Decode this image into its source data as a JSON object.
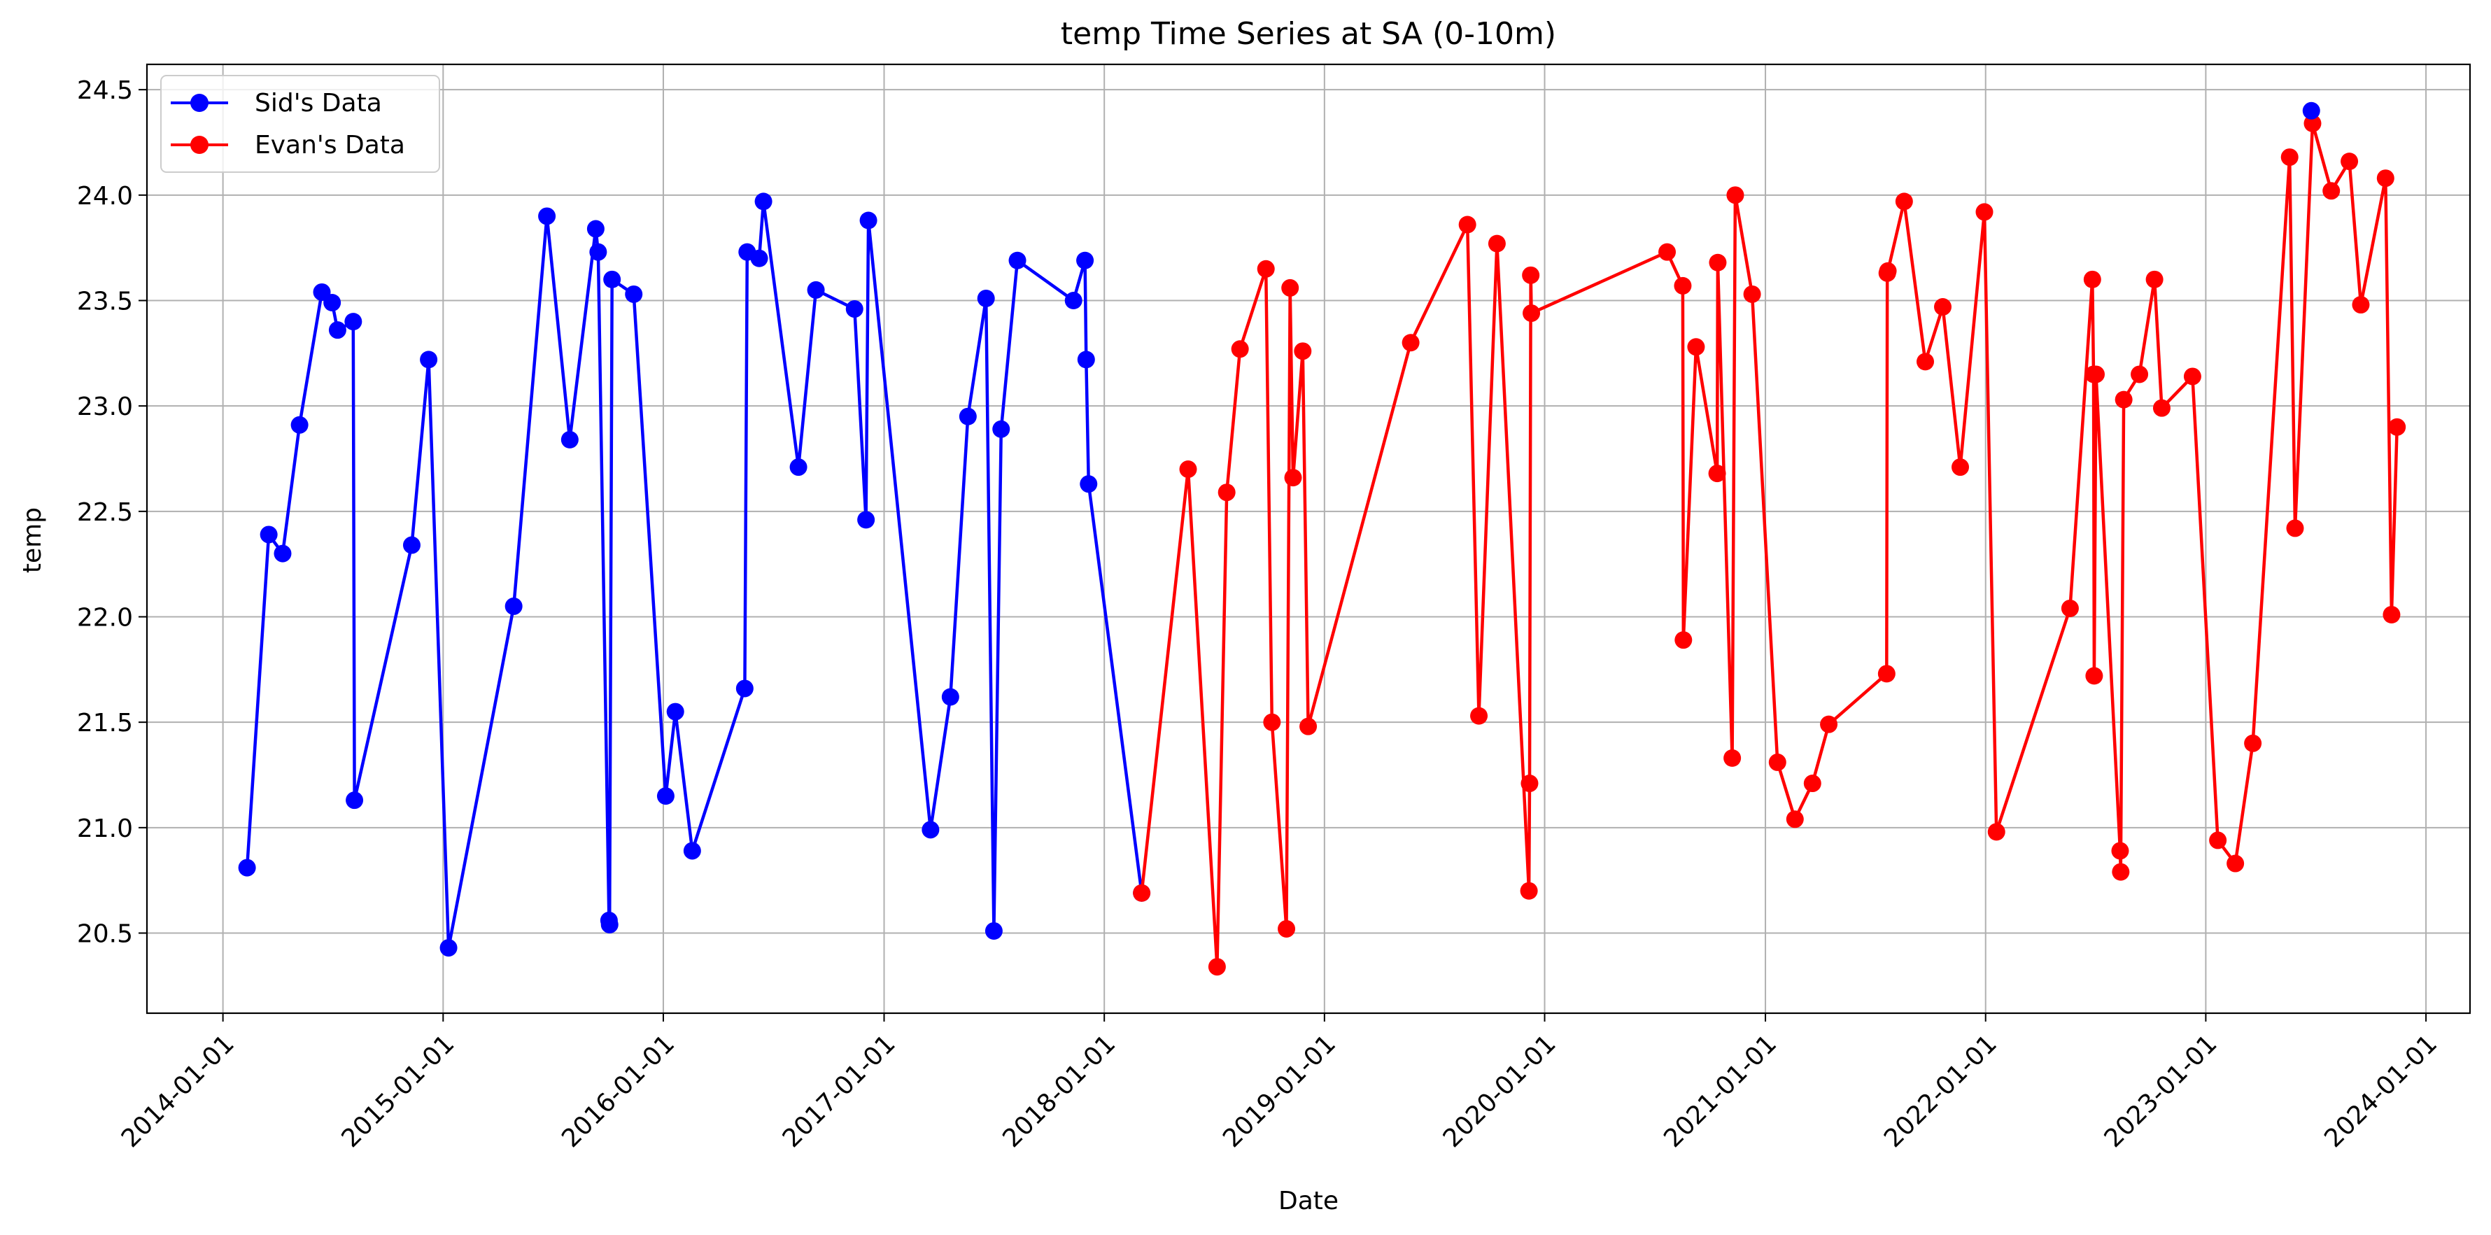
{
  "chart_data": {
    "type": "line",
    "title": "temp Time Series at SA (0-10m)",
    "xlabel": "Date",
    "ylabel": "temp",
    "ylim": [
      20.12,
      24.62
    ],
    "xlim": [
      "2013-08-28",
      "2024-03-14"
    ],
    "grid": true,
    "legend_position": "top-left",
    "x_ticks": [
      "2014-01-01",
      "2015-01-01",
      "2016-01-01",
      "2017-01-01",
      "2018-01-01",
      "2019-01-01",
      "2020-01-01",
      "2021-01-01",
      "2022-01-01",
      "2023-01-01",
      "2024-01-01"
    ],
    "y_ticks": [
      20.5,
      21.0,
      21.5,
      22.0,
      22.5,
      23.0,
      23.5,
      24.0,
      24.5
    ],
    "y_tick_labels": [
      "20.5",
      "21.0",
      "21.5",
      "22.0",
      "22.5",
      "23.0",
      "23.5",
      "24.0",
      "24.5"
    ],
    "series": [
      {
        "name": "Sid's Data",
        "color": "#0000ff",
        "points": [
          [
            "2014-02-10",
            20.81
          ],
          [
            "2014-03-18",
            22.39
          ],
          [
            "2014-04-10",
            22.3
          ],
          [
            "2014-05-08",
            22.91
          ],
          [
            "2014-06-14",
            23.54
          ],
          [
            "2014-07-01",
            23.49
          ],
          [
            "2014-07-10",
            23.36
          ],
          [
            "2014-08-05",
            23.4
          ],
          [
            "2014-08-07",
            21.13
          ],
          [
            "2014-11-10",
            22.34
          ],
          [
            "2014-12-08",
            23.22
          ],
          [
            "2015-01-10",
            20.43
          ],
          [
            "2015-04-28",
            22.05
          ],
          [
            "2015-06-22",
            23.9
          ],
          [
            "2015-07-30",
            22.84
          ],
          [
            "2015-09-11",
            23.84
          ],
          [
            "2015-09-15",
            23.73
          ],
          [
            "2015-10-03",
            20.56
          ],
          [
            "2015-10-04",
            20.54
          ],
          [
            "2015-10-08",
            23.6
          ],
          [
            "2015-11-13",
            23.53
          ],
          [
            "2016-01-05",
            21.15
          ],
          [
            "2016-01-21",
            21.55
          ],
          [
            "2016-02-18",
            20.89
          ],
          [
            "2016-05-15",
            21.66
          ],
          [
            "2016-05-19",
            23.73
          ],
          [
            "2016-06-08",
            23.7
          ],
          [
            "2016-06-15",
            23.97
          ],
          [
            "2016-08-12",
            22.71
          ],
          [
            "2016-09-10",
            23.55
          ],
          [
            "2016-11-13",
            23.46
          ],
          [
            "2016-12-02",
            22.46
          ],
          [
            "2016-12-06",
            23.88
          ],
          [
            "2017-03-19",
            20.99
          ],
          [
            "2017-04-21",
            21.62
          ],
          [
            "2017-05-20",
            22.95
          ],
          [
            "2017-06-19",
            23.51
          ],
          [
            "2017-07-02",
            20.51
          ],
          [
            "2017-07-14",
            22.89
          ],
          [
            "2017-08-10",
            23.69
          ],
          [
            "2017-11-11",
            23.5
          ],
          [
            "2017-11-30",
            23.69
          ],
          [
            "2017-12-02",
            23.22
          ],
          [
            "2017-12-06",
            22.63
          ],
          [
            "2018-03-04",
            20.69
          ]
        ]
      },
      {
        "name": "Evan's Data",
        "color": "#ff0000",
        "points": [
          [
            "2018-03-04",
            20.69
          ],
          [
            "2018-05-20",
            22.7
          ],
          [
            "2018-07-07",
            20.34
          ],
          [
            "2018-07-23",
            22.59
          ],
          [
            "2018-08-14",
            23.27
          ],
          [
            "2018-09-26",
            23.65
          ],
          [
            "2018-10-06",
            21.5
          ],
          [
            "2018-10-30",
            20.52
          ],
          [
            "2018-11-05",
            23.56
          ],
          [
            "2018-11-10",
            22.66
          ],
          [
            "2018-11-26",
            23.26
          ],
          [
            "2018-12-05",
            21.48
          ],
          [
            "2019-05-24",
            23.3
          ],
          [
            "2019-08-26",
            23.86
          ],
          [
            "2019-09-14",
            21.53
          ],
          [
            "2019-10-14",
            23.77
          ],
          [
            "2019-12-06",
            20.7
          ],
          [
            "2019-12-07",
            21.21
          ],
          [
            "2019-12-09",
            23.62
          ],
          [
            "2019-12-10",
            23.44
          ],
          [
            "2020-07-22",
            23.73
          ],
          [
            "2020-08-17",
            23.57
          ],
          [
            "2020-08-18",
            21.89
          ],
          [
            "2020-09-08",
            23.28
          ],
          [
            "2020-10-13",
            22.68
          ],
          [
            "2020-10-14",
            23.68
          ],
          [
            "2020-11-07",
            21.33
          ],
          [
            "2020-11-12",
            24.0
          ],
          [
            "2020-12-10",
            23.53
          ],
          [
            "2021-01-21",
            21.31
          ],
          [
            "2021-02-19",
            21.04
          ],
          [
            "2021-03-20",
            21.21
          ],
          [
            "2021-04-16",
            21.49
          ],
          [
            "2021-07-21",
            21.73
          ],
          [
            "2021-07-22",
            23.63
          ],
          [
            "2021-07-23",
            23.64
          ],
          [
            "2021-08-19",
            23.97
          ],
          [
            "2021-09-23",
            23.21
          ],
          [
            "2021-10-22",
            23.47
          ],
          [
            "2021-11-20",
            22.71
          ],
          [
            "2021-12-30",
            23.92
          ],
          [
            "2022-01-19",
            20.98
          ],
          [
            "2022-05-21",
            22.04
          ],
          [
            "2022-06-27",
            23.6
          ],
          [
            "2022-06-29",
            23.15
          ],
          [
            "2022-06-30",
            21.72
          ],
          [
            "2022-07-03",
            23.15
          ],
          [
            "2022-08-12",
            20.89
          ],
          [
            "2022-08-13",
            20.79
          ],
          [
            "2022-08-18",
            23.03
          ],
          [
            "2022-09-13",
            23.15
          ],
          [
            "2022-10-08",
            23.6
          ],
          [
            "2022-10-20",
            22.99
          ],
          [
            "2022-12-10",
            23.14
          ],
          [
            "2023-01-21",
            20.94
          ],
          [
            "2023-02-19",
            20.83
          ],
          [
            "2023-03-20",
            21.4
          ],
          [
            "2023-05-20",
            24.18
          ],
          [
            "2023-05-29",
            22.42
          ],
          [
            "2023-06-27",
            24.34
          ],
          [
            "2023-07-28",
            24.02
          ],
          [
            "2023-08-27",
            24.16
          ],
          [
            "2023-09-15",
            23.48
          ],
          [
            "2023-10-26",
            24.08
          ],
          [
            "2023-11-05",
            22.01
          ],
          [
            "2023-11-14",
            22.9
          ]
        ]
      }
    ],
    "extra_points": [
      {
        "series": "Sid's Data",
        "x": "2023-06-25",
        "y": 24.4
      }
    ]
  }
}
